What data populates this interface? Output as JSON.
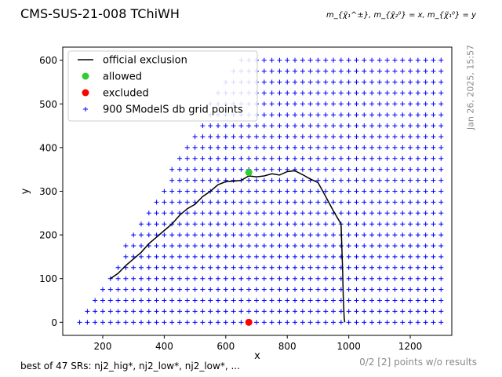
{
  "header": {
    "title": "CMS-SUS-21-008 TChiWH",
    "corner_label": "m_{χ̃₁^±}, m_{χ̃₂⁰} = x, m_{χ̃₁⁰} = y",
    "timestamp": "Jan 26, 2025, 15:57"
  },
  "footer": {
    "left": "best of 47 SRs: nj2_hig*, nj2_low*, nj2_low*, ...",
    "right": "0/2 [2] points w/o results"
  },
  "chart_data": {
    "type": "scatter",
    "xlabel": "x",
    "ylabel": "y",
    "xlim": [
      70,
      1335
    ],
    "ylim": [
      -30,
      630
    ],
    "xticks": [
      200,
      400,
      600,
      800,
      1000,
      1200
    ],
    "yticks": [
      0,
      100,
      200,
      300,
      400,
      500,
      600
    ],
    "legend": {
      "placement": "top-left",
      "entries": [
        "official exclusion",
        "allowed",
        "excluded",
        "900 SModelS db grid points"
      ]
    },
    "exclusion_line": {
      "name": "official exclusion",
      "color": "#000000",
      "x": [
        225,
        250,
        275,
        300,
        325,
        350,
        375,
        400,
        425,
        450,
        475,
        500,
        525,
        550,
        575,
        600,
        625,
        650,
        675,
        700,
        725,
        750,
        775,
        800,
        825,
        850,
        875,
        900,
        925,
        950,
        975,
        980,
        982,
        985,
        987
      ],
      "y": [
        100,
        112,
        130,
        145,
        160,
        180,
        195,
        210,
        225,
        245,
        260,
        270,
        288,
        300,
        315,
        322,
        323,
        325,
        335,
        333,
        335,
        340,
        337,
        345,
        347,
        338,
        328,
        320,
        288,
        255,
        225,
        120,
        60,
        10,
        0
      ]
    },
    "allowed_points": {
      "name": "allowed",
      "color": "#33cc33",
      "x": [
        675
      ],
      "y": [
        343
      ]
    },
    "excluded_points": {
      "name": "excluded",
      "color": "#ff0000",
      "x": [
        675
      ],
      "y": [
        0
      ]
    },
    "grid_points": {
      "name": "900 SModelS db grid points",
      "color": "#0000ff",
      "marker": "+",
      "x_start": 125,
      "x_end": 1300,
      "y_start": 0,
      "y_end": 600,
      "step": 25,
      "min_x_at_y0": 125,
      "min_x_slope": 0.85
    }
  }
}
